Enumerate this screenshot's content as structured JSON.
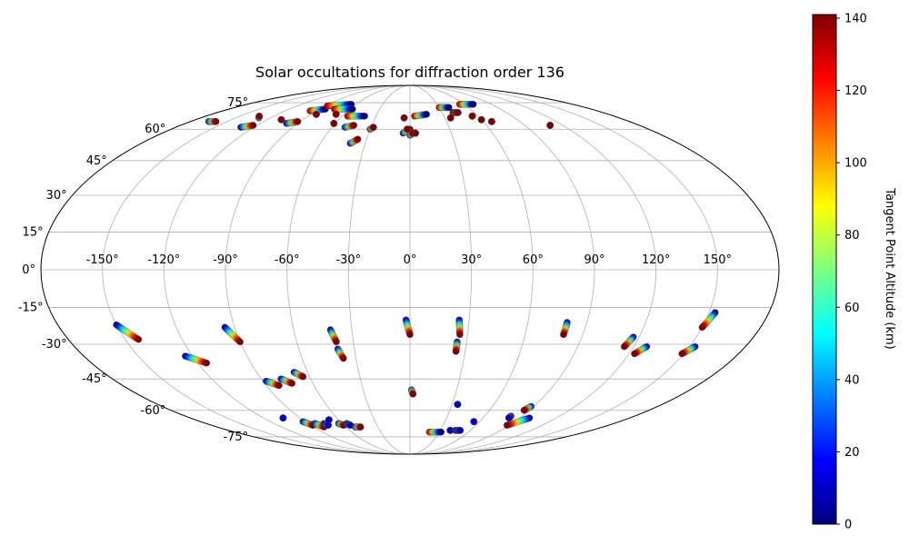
{
  "chart_data": {
    "type": "scatter",
    "projection": "mollweide",
    "title": "Solar occultations for diffraction order 136",
    "colorbar": {
      "label": "Tangent Point Altitude (km)",
      "range": [
        0,
        141
      ],
      "ticks": [
        "0",
        "20",
        "40",
        "60",
        "80",
        "100",
        "120",
        "140"
      ],
      "tick_values": [
        0,
        20,
        40,
        60,
        80,
        100,
        120,
        140
      ],
      "colormap": "jet"
    },
    "lon_ticks": [
      "-150°",
      "-120°",
      "-90°",
      "-60°",
      "-30°",
      "0°",
      "30°",
      "60°",
      "90°",
      "120°",
      "150°"
    ],
    "lon_values": [
      -150,
      -120,
      -90,
      -60,
      -30,
      0,
      30,
      60,
      90,
      120,
      150
    ],
    "lat_ticks": [
      "75°",
      "60°",
      "45°",
      "30°",
      "15°",
      "0°",
      "-15°",
      "-30°",
      "-45°",
      "-60°",
      "-75°"
    ],
    "lat_values": [
      75,
      60,
      45,
      30,
      15,
      0,
      -15,
      -30,
      -45,
      -60,
      -75
    ],
    "grid": true,
    "tracks": [
      {
        "lon": [
          -150,
          -143
        ],
        "lat": [
          -22,
          -28
        ],
        "alt": [
          0,
          141
        ]
      },
      {
        "lon": [
          -124,
          -115
        ],
        "lat": [
          -35,
          -38
        ],
        "alt": [
          0,
          141
        ]
      },
      {
        "lon": [
          -95,
          -90
        ],
        "lat": [
          -23,
          -29
        ],
        "alt": [
          0,
          141
        ]
      },
      {
        "lon": [
          -88,
          -82
        ],
        "lat": [
          -46,
          -48
        ],
        "alt": [
          0,
          141
        ]
      },
      {
        "lon": [
          -78,
          -73
        ],
        "lat": [
          -45,
          -47
        ],
        "alt": [
          0,
          141
        ]
      },
      {
        "lon": [
          -68,
          -64
        ],
        "lat": [
          -42,
          -44
        ],
        "alt": [
          0,
          141
        ]
      },
      {
        "lon": [
          -41,
          -39
        ],
        "lat": [
          -24,
          -29
        ],
        "alt": [
          0,
          141
        ]
      },
      {
        "lon": [
          -39,
          -37
        ],
        "lat": [
          -32,
          -36
        ],
        "alt": [
          0,
          141
        ]
      },
      {
        "lon": [
          -2,
          0
        ],
        "lat": [
          -20,
          -26
        ],
        "alt": [
          0,
          141
        ]
      },
      {
        "lon": [
          25,
          26
        ],
        "lat": [
          -20,
          -26
        ],
        "alt": [
          0,
          141
        ]
      },
      {
        "lon": [
          25,
          25
        ],
        "lat": [
          -29,
          -33
        ],
        "alt": [
          0,
          141
        ]
      },
      {
        "lon": [
          80,
          80
        ],
        "lat": [
          -21,
          -26
        ],
        "alt": [
          0,
          141
        ]
      },
      {
        "lon": [
          117,
          115
        ],
        "lat": [
          -27,
          -31
        ],
        "alt": [
          0,
          141
        ]
      },
      {
        "lon": [
          127,
          123
        ],
        "lat": [
          -31,
          -34
        ],
        "alt": [
          0,
          141
        ]
      },
      {
        "lon": [
          153,
          150
        ],
        "lat": [
          -17,
          -23
        ],
        "alt": [
          0,
          141
        ]
      },
      {
        "lon": [
          153,
          149
        ],
        "lat": [
          -31,
          -34
        ],
        "alt": [
          0,
          141
        ]
      },
      {
        "lon": [
          1,
          2
        ],
        "lat": [
          -50,
          -52
        ],
        "alt": [
          0,
          141
        ]
      },
      {
        "lon": [
          34,
          34
        ],
        "lat": [
          -57,
          -57
        ],
        "alt": [
          0,
          10
        ]
      },
      {
        "lon": [
          88,
          86
        ],
        "lat": [
          -58,
          -60
        ],
        "alt": [
          0,
          141
        ]
      },
      {
        "lon": [
          98,
          88
        ],
        "lat": [
          -64,
          -68
        ],
        "alt": [
          0,
          141
        ]
      },
      {
        "lon": [
          81,
          81
        ],
        "lat": [
          -63,
          -64
        ],
        "alt": [
          0,
          10
        ]
      },
      {
        "lon": [
          55,
          55
        ],
        "lat": [
          -66,
          -66
        ],
        "alt": [
          0,
          10
        ]
      },
      {
        "lon": [
          -104,
          -104
        ],
        "lat": [
          -64,
          -64
        ],
        "alt": [
          0,
          10
        ]
      },
      {
        "lon": [
          -92,
          -88
        ],
        "lat": [
          -66,
          -68
        ],
        "alt": [
          0,
          141
        ]
      },
      {
        "lon": [
          -84,
          -80
        ],
        "lat": [
          -67,
          -69
        ],
        "alt": [
          0,
          141
        ]
      },
      {
        "lon": [
          -76,
          -74
        ],
        "lat": [
          -67,
          -68
        ],
        "alt": [
          0,
          10
        ]
      },
      {
        "lon": [
          -68,
          -68
        ],
        "lat": [
          -65,
          -65
        ],
        "alt": [
          0,
          10
        ]
      },
      {
        "lon": [
          -63,
          -60
        ],
        "lat": [
          -67,
          -68
        ],
        "alt": [
          0,
          141
        ]
      },
      {
        "lon": [
          -56,
          -54
        ],
        "lat": [
          -67,
          -68
        ],
        "alt": [
          0,
          10
        ]
      },
      {
        "lon": [
          -51,
          -46
        ],
        "lat": [
          -69,
          -69
        ],
        "alt": [
          0,
          141
        ]
      },
      {
        "lon": [
          20,
          32
        ],
        "lat": [
          -72,
          -72
        ],
        "alt": [
          141,
          0
        ]
      },
      {
        "lon": [
          40,
          40
        ],
        "lat": [
          -71,
          -71
        ],
        "alt": [
          0,
          10
        ]
      },
      {
        "lon": [
          45,
          50
        ],
        "lat": [
          -71,
          -71
        ],
        "alt": [
          0,
          10
        ]
      },
      {
        "lon": [
          -165,
          -159
        ],
        "lat": [
          64,
          64
        ],
        "alt": [
          0,
          141
        ]
      },
      {
        "lon": [
          -130,
          -133
        ],
        "lat": [
          66,
          67
        ],
        "alt": [
          0,
          141
        ]
      },
      {
        "lon": [
          -130,
          -123
        ],
        "lat": [
          61,
          62
        ],
        "alt": [
          0,
          141
        ]
      },
      {
        "lon": [
          -99,
          -92
        ],
        "lat": [
          63,
          64
        ],
        "alt": [
          0,
          141
        ]
      },
      {
        "lon": [
          -96,
          -84
        ],
        "lat": [
          70,
          71
        ],
        "alt": [
          141,
          0
        ]
      },
      {
        "lon": [
          -88,
          -65
        ],
        "lat": [
          73,
          74
        ],
        "alt": [
          141,
          0
        ]
      },
      {
        "lon": [
          -75,
          -57
        ],
        "lat": [
          71,
          71
        ],
        "alt": [
          141,
          0
        ]
      },
      {
        "lon": [
          -55,
          -40
        ],
        "lat": [
          67,
          67
        ],
        "alt": [
          141,
          0
        ]
      },
      {
        "lon": [
          -50,
          -44
        ],
        "lat": [
          61,
          62
        ],
        "alt": [
          0,
          141
        ]
      },
      {
        "lon": [
          -40,
          -36
        ],
        "lat": [
          53,
          55
        ],
        "alt": [
          0,
          141
        ]
      },
      {
        "lon": [
          -30,
          -28
        ],
        "lat": [
          60,
          61
        ],
        "alt": [
          0,
          141
        ]
      },
      {
        "lon": [
          -5,
          0
        ],
        "lat": [
          58,
          60
        ],
        "alt": [
          0,
          141
        ]
      },
      {
        "lon": [
          0,
          2
        ],
        "lat": [
          57,
          58
        ],
        "alt": [
          0,
          141
        ]
      },
      {
        "lon": [
          4,
          15
        ],
        "lat": [
          67,
          68
        ],
        "alt": [
          141,
          0
        ]
      },
      {
        "lon": [
          30,
          40
        ],
        "lat": [
          72,
          72
        ],
        "alt": [
          141,
          0
        ]
      },
      {
        "lon": [
          55,
          70
        ],
        "lat": [
          74,
          74
        ],
        "alt": [
          141,
          0
        ]
      },
      {
        "lon": [
          40,
          45
        ],
        "lat": [
          69,
          69
        ],
        "alt": [
          141,
          141
        ]
      },
      {
        "lon": [
          55,
          55
        ],
        "lat": [
          67,
          67
        ],
        "alt": [
          141,
          141
        ]
      },
      {
        "lon": [
          60,
          60
        ],
        "lat": [
          65,
          65
        ],
        "alt": [
          141,
          141
        ]
      },
      {
        "lon": [
          67,
          67
        ],
        "lat": [
          64,
          64
        ],
        "alt": [
          141,
          141
        ]
      },
      {
        "lon": [
          110,
          110
        ],
        "lat": [
          62,
          62
        ],
        "alt": [
          141,
          141
        ]
      },
      {
        "lon": [
          35,
          35
        ],
        "lat": [
          66,
          66
        ],
        "alt": [
          141,
          141
        ]
      },
      {
        "lon": [
          -5,
          -5
        ],
        "lat": [
          66,
          66
        ],
        "alt": [
          141,
          141
        ]
      },
      {
        "lon": [
          -2,
          -2
        ],
        "lat": [
          60,
          60
        ],
        "alt": [
          141,
          141
        ]
      },
      {
        "lon": [
          4,
          4
        ],
        "lat": [
          58,
          58
        ],
        "alt": [
          141,
          141
        ]
      },
      {
        "lon": [
          -61,
          -61
        ],
        "lat": [
          63,
          63
        ],
        "alt": [
          141,
          141
        ]
      },
      {
        "lon": [
          -67,
          -67
        ],
        "lat": [
          68,
          68
        ],
        "alt": [
          141,
          141
        ]
      },
      {
        "lon": [
          -108,
          -108
        ],
        "lat": [
          65,
          65
        ],
        "alt": [
          141,
          141
        ]
      },
      {
        "lon": [
          -85,
          -85
        ],
        "lat": [
          68,
          68
        ],
        "alt": [
          141,
          141
        ]
      }
    ]
  }
}
